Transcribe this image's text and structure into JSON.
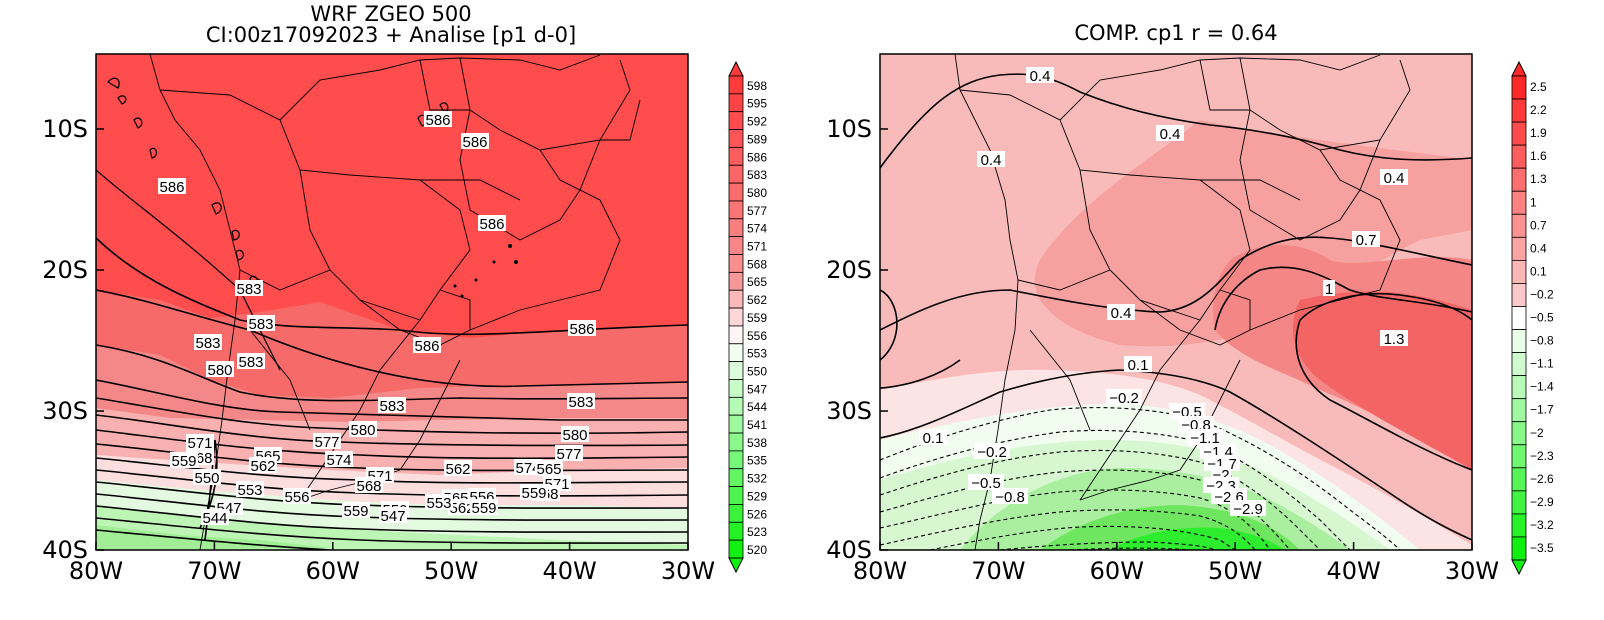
{
  "left_panel": {
    "title_line1": "WRF ZGEO 500",
    "title_line2": "CI:00z17092023 + Analise  [p1 d-0]",
    "colorbar_levels": [
      "598",
      "595",
      "592",
      "589",
      "586",
      "583",
      "580",
      "577",
      "574",
      "571",
      "568",
      "565",
      "562",
      "559",
      "556",
      "553",
      "550",
      "547",
      "544",
      "541",
      "538",
      "535",
      "532",
      "529",
      "526",
      "523",
      "520"
    ],
    "contour_labels": [
      "586",
      "586",
      "586",
      "586",
      "583",
      "583",
      "583",
      "583",
      "580",
      "586",
      "586",
      "583",
      "583",
      "580",
      "577",
      "574",
      "571",
      "568",
      "571",
      "580",
      "577",
      "574",
      "571",
      "568",
      "565",
      "562",
      "559",
      "568",
      "565",
      "562",
      "550",
      "553",
      "556",
      "559",
      "559",
      "565",
      "562",
      "556",
      "559",
      "553",
      "550",
      "547",
      "547",
      "544"
    ]
  },
  "right_panel": {
    "title": "COMP. cp1   r =   0.64",
    "colorbar_levels": [
      "2.5",
      "2.2",
      "1.9",
      "1.6",
      "1.3",
      "1",
      "0.7",
      "0.4",
      "0.1",
      "−0.2",
      "−0.5",
      "−0.8",
      "−1.1",
      "−1.4",
      "−1.7",
      "−2",
      "−2.3",
      "−2.6",
      "−2.9",
      "−3.2",
      "−3.5"
    ],
    "contour_labels": [
      "0.4",
      "0.4",
      "0.4",
      "0.4",
      "0.7",
      "1",
      "1.3",
      "0.4",
      "0.1",
      "−0.2",
      "0.1",
      "−0.2",
      "−0.5",
      "−0.8",
      "−0.5",
      "−0.8",
      "−1.1",
      "−1.4",
      "−1.7",
      "−2",
      "−2.3",
      "−2.6",
      "−2.9"
    ]
  },
  "axes": {
    "x_ticks": [
      "80W",
      "70W",
      "60W",
      "50W",
      "40W",
      "30W"
    ],
    "y_ticks": [
      "10S",
      "20S",
      "30S",
      "40S"
    ]
  },
  "colors": {
    "high_red": "#ff4848",
    "mid_red": "#f47474",
    "pink": "#f9b6b6",
    "light_pink": "#fde4e4",
    "light_green": "#d6f7d0",
    "green": "#11f111"
  }
}
